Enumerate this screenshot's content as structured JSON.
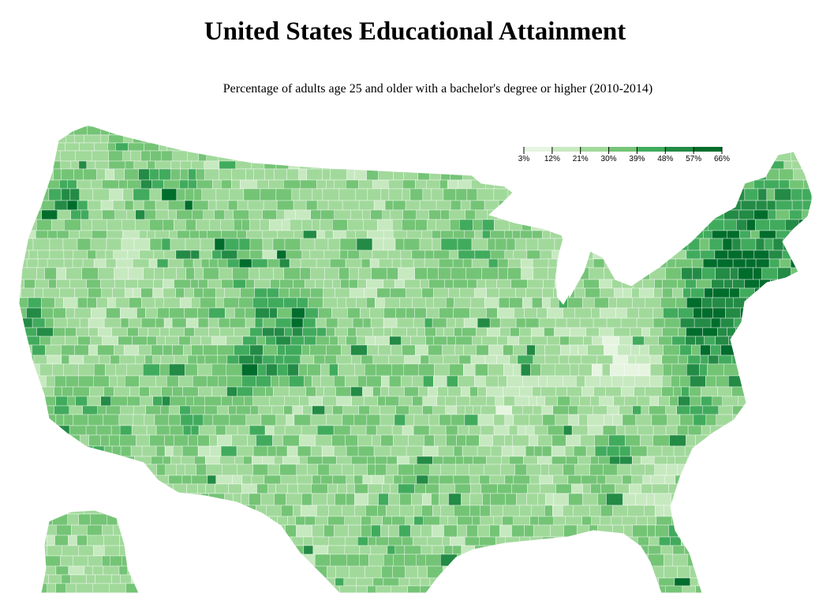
{
  "title": "United States Educational Attainment",
  "subtitle": "Percentage of adults age 25 and older with a bachelor's degree or higher (2010-2014)",
  "legend": {
    "min_value": 3,
    "max_value": 66,
    "tick_labels": [
      "3%",
      "12%",
      "21%",
      "30%",
      "39%",
      "48%",
      "57%",
      "66%"
    ],
    "colors": [
      "#e5f5e0",
      "#c7e9c0",
      "#a1d99b",
      "#74c476",
      "#41ab5d",
      "#238b45",
      "#006d2c"
    ]
  },
  "map": {
    "region": "United States counties",
    "colors": {
      "background": "#ffffff",
      "county_border": "#ffffff"
    }
  }
}
